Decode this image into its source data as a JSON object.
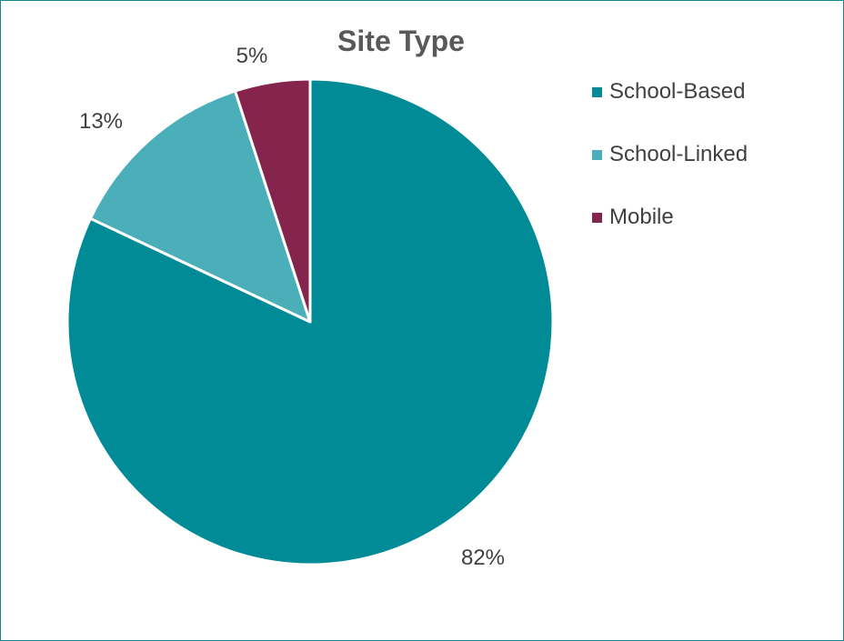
{
  "chart_data": {
    "type": "pie",
    "title": "Site Type",
    "categories": [
      "School-Based",
      "School-Linked",
      "Mobile"
    ],
    "values": [
      82,
      13,
      5
    ],
    "labels": [
      "82%",
      "13%",
      "5%"
    ],
    "colors": [
      "#008b96",
      "#4bafb9",
      "#85244c"
    ],
    "start_angle": "12 o'clock",
    "direction": "clockwise",
    "legend_position": "right"
  }
}
